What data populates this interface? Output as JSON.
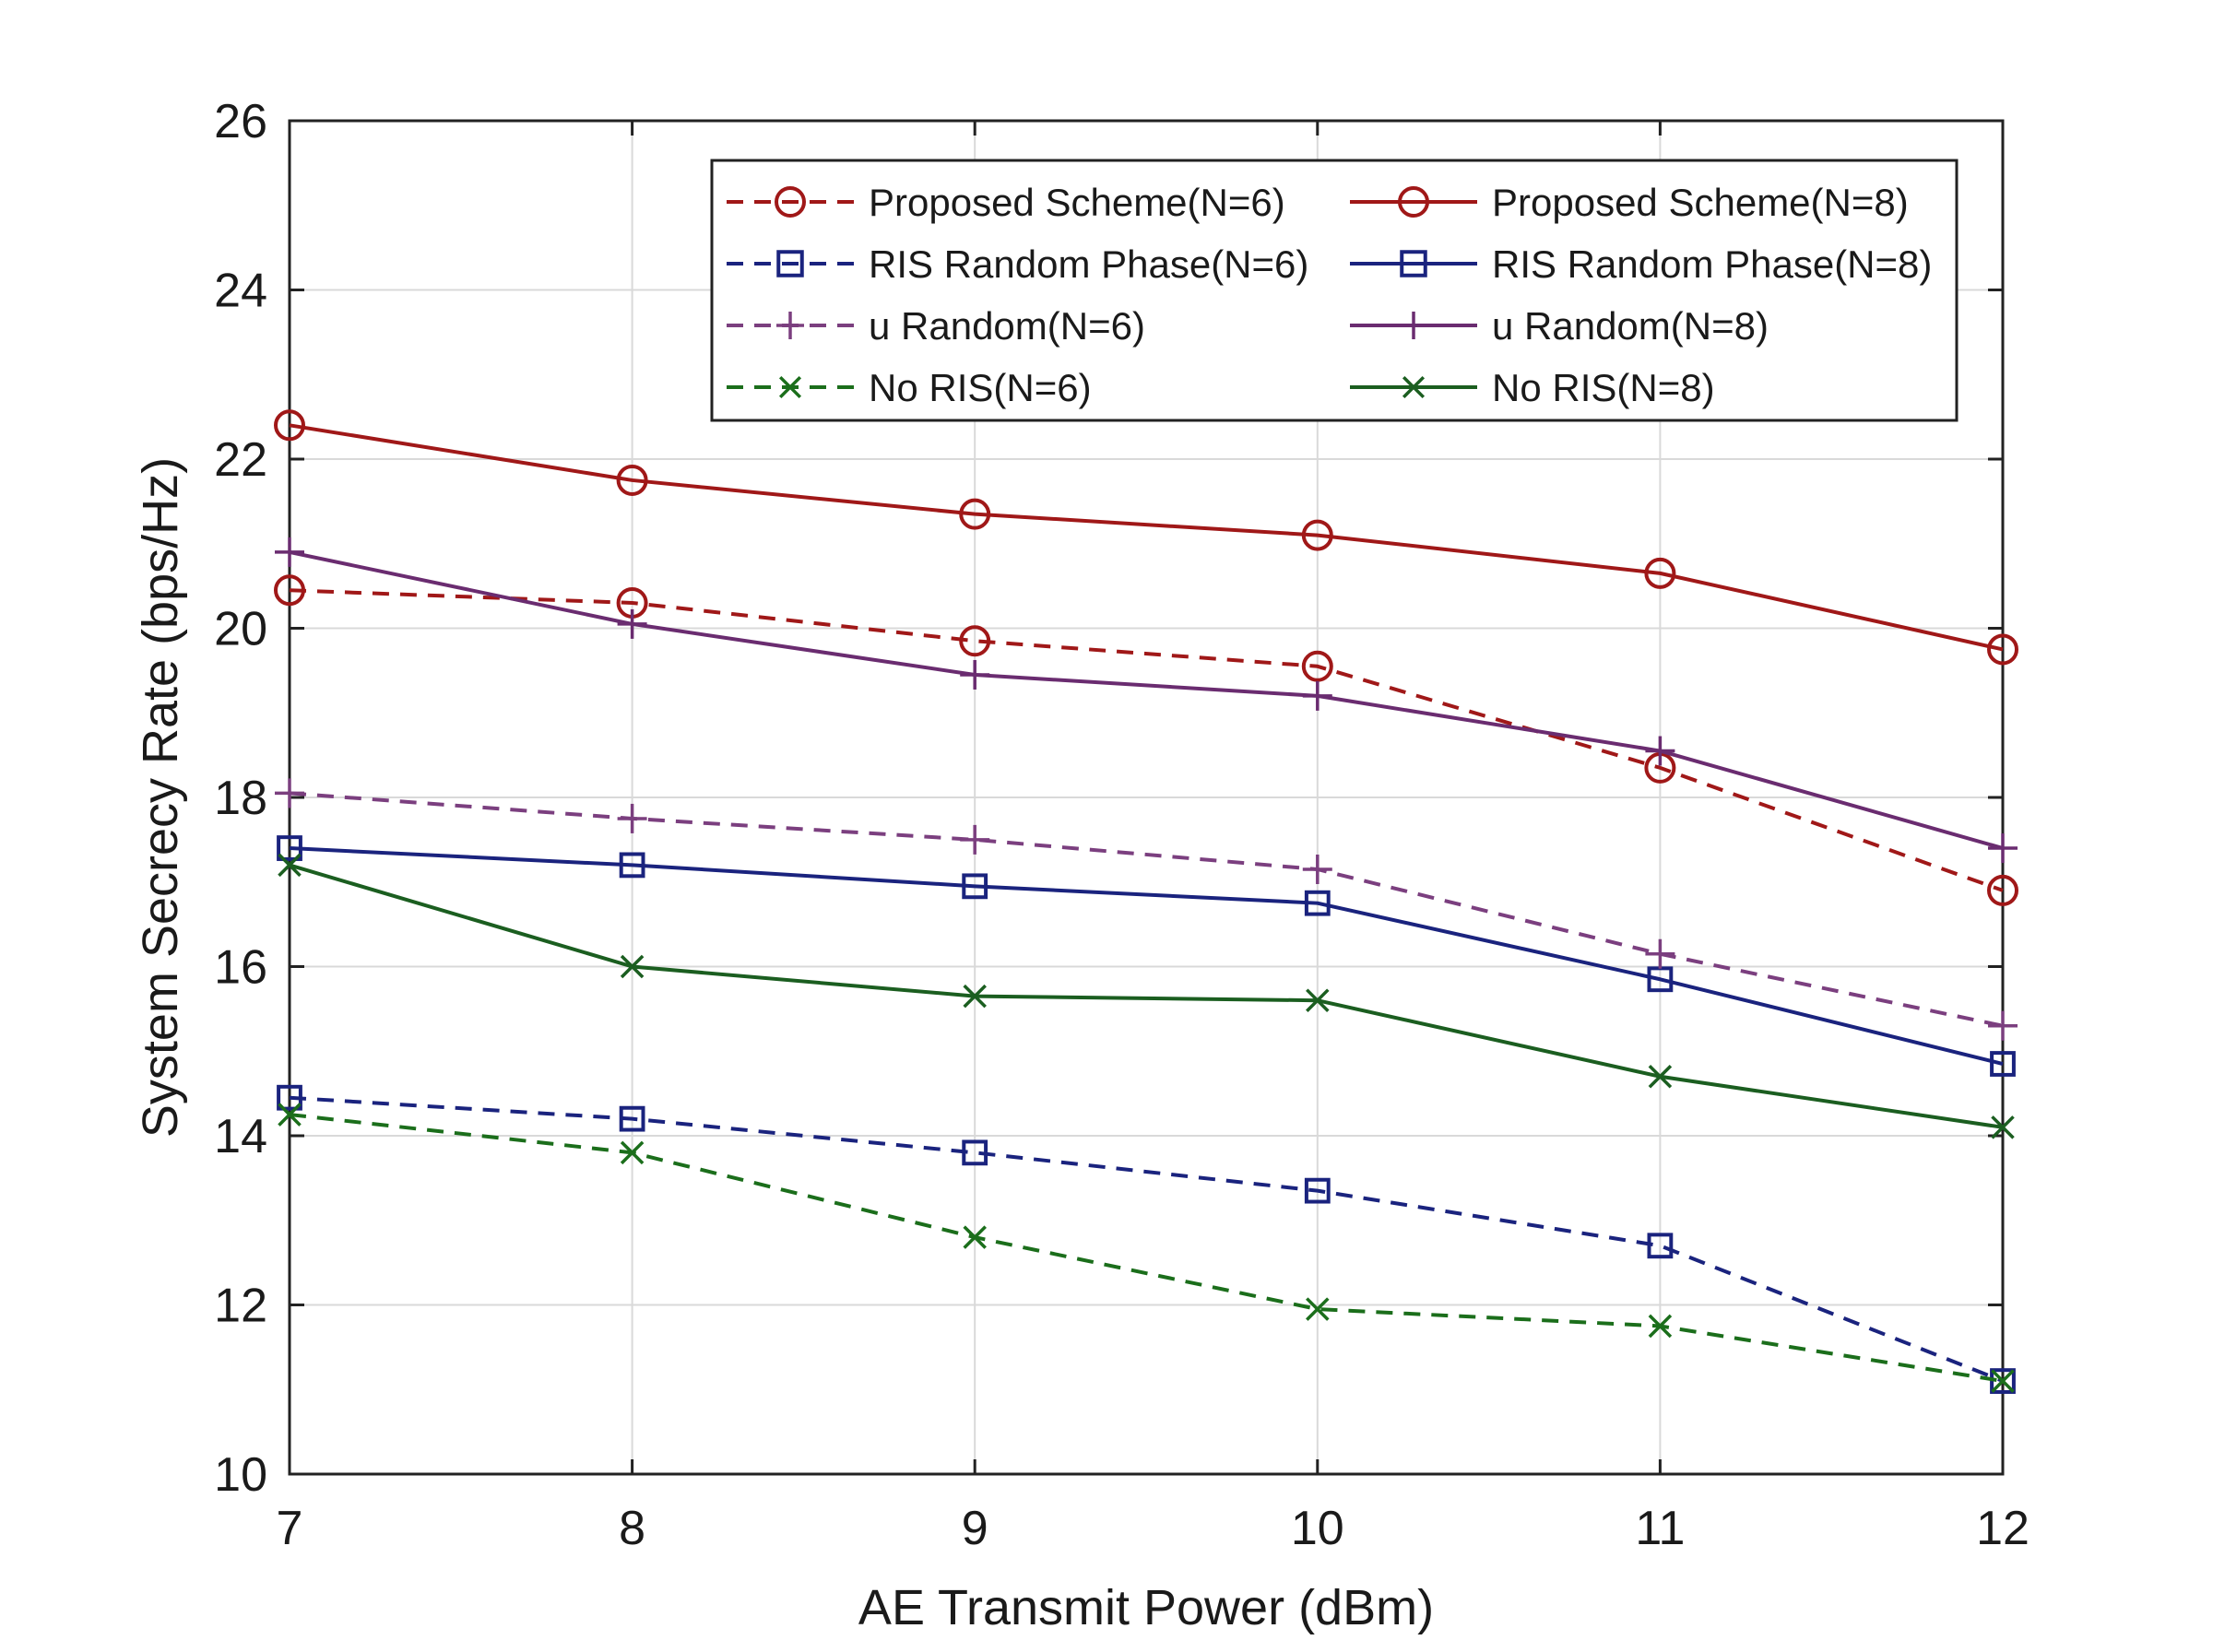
{
  "chart_data": {
    "type": "line",
    "title": "",
    "xlabel": "AE Transmit Power (dBm)",
    "ylabel": "System Secrecy Rate (bps/Hz)",
    "x": [
      7,
      8,
      9,
      10,
      11,
      12
    ],
    "xlim": [
      7,
      12
    ],
    "ylim": [
      10,
      26
    ],
    "xticks": [
      7,
      8,
      9,
      10,
      11,
      12
    ],
    "yticks": [
      10,
      12,
      14,
      16,
      18,
      20,
      22,
      24,
      26
    ],
    "grid": true,
    "legend_location": "top-right",
    "series": [
      {
        "name": "Proposed Scheme(N=6)",
        "color": "#a01818",
        "dash": "dashed",
        "marker": "circle",
        "values": [
          20.45,
          20.3,
          19.85,
          19.55,
          18.35,
          16.9
        ]
      },
      {
        "name": "Proposed Scheme(N=8)",
        "color": "#a01818",
        "dash": "solid",
        "marker": "circle",
        "values": [
          22.4,
          21.75,
          21.35,
          21.1,
          20.65,
          19.75
        ]
      },
      {
        "name": "RIS Random Phase(N=6)",
        "color": "#1a237e",
        "dash": "dashed",
        "marker": "square",
        "values": [
          14.45,
          14.2,
          13.8,
          13.35,
          12.7,
          11.1
        ]
      },
      {
        "name": "RIS Random Phase(N=8)",
        "color": "#1a237e",
        "dash": "solid",
        "marker": "square",
        "values": [
          17.4,
          17.2,
          16.95,
          16.75,
          15.85,
          14.85
        ]
      },
      {
        "name": "u Random(N=6)",
        "color": "#7b3f7f",
        "dash": "dashed",
        "marker": "plus",
        "values": [
          18.05,
          17.75,
          17.5,
          17.15,
          16.15,
          15.3
        ]
      },
      {
        "name": "u Random(N=8)",
        "color": "#6a2c70",
        "dash": "solid",
        "marker": "plus",
        "values": [
          20.9,
          20.05,
          19.45,
          19.2,
          18.55,
          17.4
        ]
      },
      {
        "name": "No RIS(N=6)",
        "color": "#1b6e1b",
        "dash": "dashed",
        "marker": "x",
        "values": [
          14.25,
          13.8,
          12.8,
          11.95,
          11.75,
          11.1
        ]
      },
      {
        "name": "No RIS(N=8)",
        "color": "#1b5e20",
        "dash": "solid",
        "marker": "x",
        "values": [
          17.2,
          16.0,
          15.65,
          15.6,
          14.7,
          14.1
        ]
      }
    ]
  }
}
